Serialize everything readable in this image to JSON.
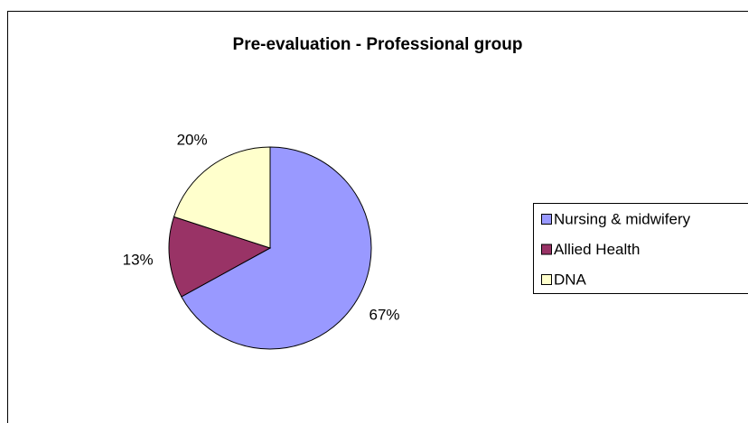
{
  "chart_data": {
    "type": "pie",
    "title": "Pre-evaluation - Professional group",
    "categories": [
      "Nursing & midwifery",
      "Allied Health",
      "DNA"
    ],
    "values": [
      67,
      13,
      20
    ],
    "value_labels": [
      "67%",
      "13%",
      "20%"
    ],
    "colors": [
      "#9999ff",
      "#993366",
      "#ffffcc"
    ],
    "legend": "right"
  }
}
